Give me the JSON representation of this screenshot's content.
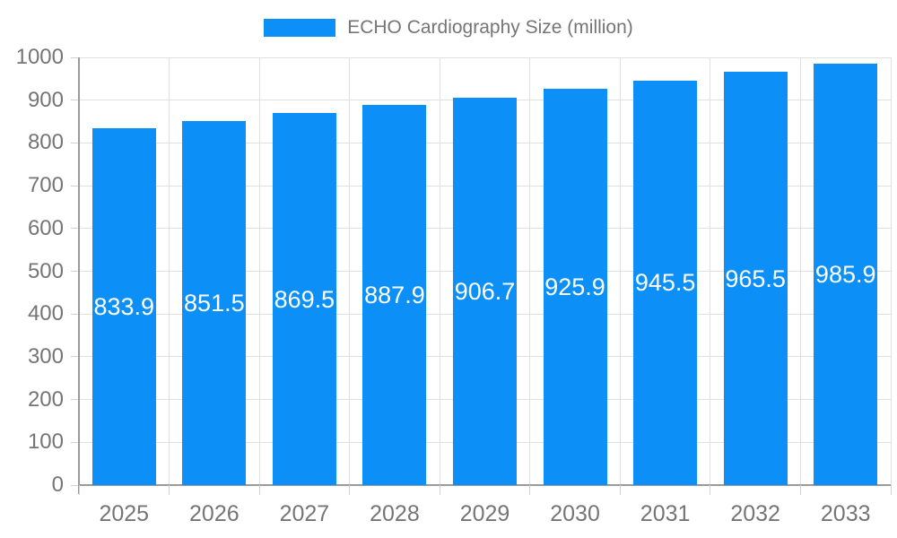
{
  "chart_data": {
    "type": "bar",
    "title": "",
    "legend": "ECHO Cardiography Size (million)",
    "legend_position": "top-center",
    "categories": [
      "2025",
      "2026",
      "2027",
      "2028",
      "2029",
      "2030",
      "2031",
      "2032",
      "2033"
    ],
    "values": [
      833.9,
      851.5,
      869.5,
      887.9,
      906.7,
      925.9,
      945.5,
      965.5,
      985.9
    ],
    "bar_value_labels": [
      "833.9",
      "851.5",
      "869.5",
      "887.9",
      "906.7",
      "925.9",
      "945.5",
      "965.5",
      "985.9"
    ],
    "xlabel": "",
    "ylabel": "",
    "ylim": [
      0,
      1000
    ],
    "yticks": [
      0,
      100,
      200,
      300,
      400,
      500,
      600,
      700,
      800,
      900,
      1000
    ],
    "grid": true,
    "value_label_position": "inside-middle",
    "colors": {
      "bar": "#0d8ff8",
      "axis_line": "#9a9a9a",
      "gridline": "#e0e0e0",
      "tick_mark": "#d0d0d0",
      "axis_text": "#757575",
      "value_label_text": "#ffffff",
      "background": "#ffffff"
    }
  }
}
